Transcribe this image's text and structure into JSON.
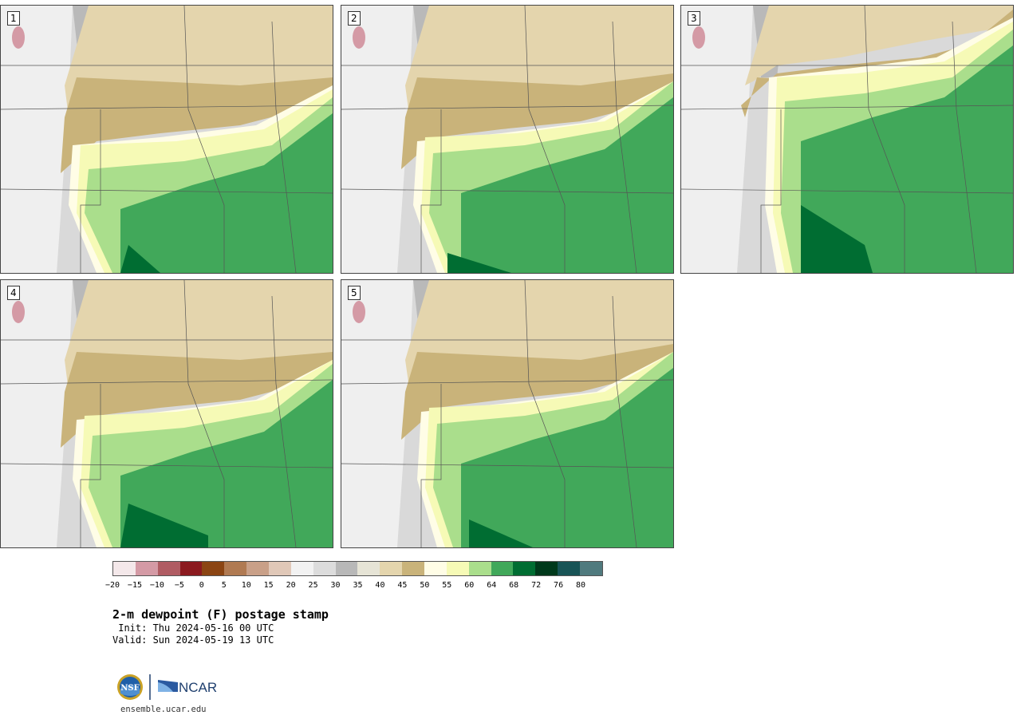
{
  "panels": [
    {
      "label": "1"
    },
    {
      "label": "2"
    },
    {
      "label": "3"
    },
    {
      "label": "4"
    },
    {
      "label": "5"
    }
  ],
  "colorbar": {
    "colors": [
      "#f4e8ea",
      "#d49aa5",
      "#b05c63",
      "#8b1a1f",
      "#8b4513",
      "#b07a52",
      "#c9a088",
      "#e0c8b8",
      "#f2f2f2",
      "#dcdcdc",
      "#b8b8b8",
      "#e6e4d6",
      "#e4d5ad",
      "#c9b37a",
      "#fffde6",
      "#f6fab6",
      "#aade8c",
      "#41a85a",
      "#006d32",
      "#00391b",
      "#185456",
      "#507a7e"
    ],
    "tick_labels": [
      "−20",
      "−15",
      "−10",
      "−5",
      "0",
      "5",
      "10",
      "15",
      "20",
      "25",
      "30",
      "35",
      "40",
      "45",
      "50",
      "55",
      "60",
      "64",
      "68",
      "72",
      "76",
      "80"
    ]
  },
  "title": "2-m dewpoint (F) postage stamp",
  "init": " Init: Thu 2024-05-16 00 UTC",
  "valid": "Valid: Sun 2024-05-19 13 UTC",
  "logos": {
    "nsf": "NSF",
    "ncar": "NCAR"
  },
  "footer_url": "ensemble.ucar.edu"
}
